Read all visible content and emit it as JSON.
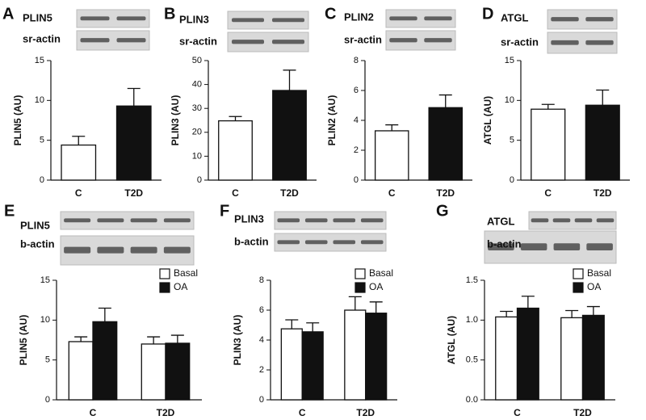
{
  "chart_data": [
    {
      "type": "bar",
      "panel": "A",
      "blot_labels": [
        "PLIN5",
        "sr-actin"
      ],
      "ylabel": "PLIN5 (AU)",
      "categories": [
        "C",
        "T2D"
      ],
      "values": [
        4.4,
        9.3
      ],
      "errors": [
        1.1,
        2.2
      ],
      "colors": [
        "#ffffff",
        "#111111"
      ],
      "ylim": [
        0,
        15
      ],
      "yticks": [
        0,
        5,
        10,
        15
      ]
    },
    {
      "type": "bar",
      "panel": "B",
      "blot_labels": [
        "PLIN3",
        "sr-actin"
      ],
      "ylabel": "PLIN3 (AU)",
      "categories": [
        "C",
        "T2D"
      ],
      "values": [
        24.8,
        37.5
      ],
      "errors": [
        1.8,
        8.5
      ],
      "colors": [
        "#ffffff",
        "#111111"
      ],
      "ylim": [
        0,
        50
      ],
      "yticks": [
        0,
        10,
        20,
        30,
        40,
        50
      ]
    },
    {
      "type": "bar",
      "panel": "C",
      "blot_labels": [
        "PLIN2",
        "sr-actin"
      ],
      "ylabel": "PLIN2 (AU)",
      "categories": [
        "C",
        "T2D"
      ],
      "values": [
        3.3,
        4.85
      ],
      "errors": [
        0.4,
        0.85
      ],
      "colors": [
        "#ffffff",
        "#111111"
      ],
      "ylim": [
        0,
        8
      ],
      "yticks": [
        0,
        2,
        4,
        6,
        8
      ]
    },
    {
      "type": "bar",
      "panel": "D",
      "blot_labels": [
        "ATGL",
        "sr-actin"
      ],
      "ylabel": "ATGL (AU)",
      "categories": [
        "C",
        "T2D"
      ],
      "values": [
        8.9,
        9.4
      ],
      "errors": [
        0.6,
        1.9
      ],
      "colors": [
        "#ffffff",
        "#111111"
      ],
      "ylim": [
        0,
        15
      ],
      "yticks": [
        0,
        5,
        10,
        15
      ]
    },
    {
      "type": "grouped-bar",
      "panel": "E",
      "blot_labels": [
        "PLIN5",
        "b-actin"
      ],
      "ylabel": "PLIN5 (AU)",
      "categories": [
        "C",
        "T2D"
      ],
      "series": [
        {
          "name": "Basal",
          "color": "#ffffff",
          "values": [
            7.3,
            7.0
          ],
          "errors": [
            0.6,
            0.9
          ]
        },
        {
          "name": "OA",
          "color": "#111111",
          "values": [
            9.8,
            7.1
          ],
          "errors": [
            1.7,
            1.0
          ]
        }
      ],
      "ylim": [
        0,
        15
      ],
      "yticks": [
        0,
        5,
        10,
        15
      ]
    },
    {
      "type": "grouped-bar",
      "panel": "F",
      "blot_labels": [
        "PLIN3",
        "b-actin"
      ],
      "ylabel": "PLIN3 (AU)",
      "categories": [
        "C",
        "T2D"
      ],
      "series": [
        {
          "name": "Basal",
          "color": "#ffffff",
          "values": [
            4.75,
            6.0
          ],
          "errors": [
            0.6,
            0.9
          ]
        },
        {
          "name": "OA",
          "color": "#111111",
          "values": [
            4.55,
            5.8
          ],
          "errors": [
            0.6,
            0.75
          ]
        }
      ],
      "ylim": [
        0,
        8
      ],
      "yticks": [
        0,
        2,
        4,
        6,
        8
      ]
    },
    {
      "type": "grouped-bar",
      "panel": "G",
      "blot_labels": [
        "ATGL",
        "b-actin"
      ],
      "ylabel": "ATGL (AU)",
      "categories": [
        "C",
        "T2D"
      ],
      "series": [
        {
          "name": "Basal",
          "color": "#ffffff",
          "values": [
            1.04,
            1.03
          ],
          "errors": [
            0.07,
            0.09
          ]
        },
        {
          "name": "OA",
          "color": "#111111",
          "values": [
            1.15,
            1.06
          ],
          "errors": [
            0.15,
            0.11
          ]
        }
      ],
      "ylim": [
        0,
        1.5
      ],
      "yticks": [
        {
          "value": 0,
          "label": "0.0"
        },
        0.5,
        {
          "value": 1,
          "label": "1.0"
        },
        1.5
      ]
    }
  ]
}
